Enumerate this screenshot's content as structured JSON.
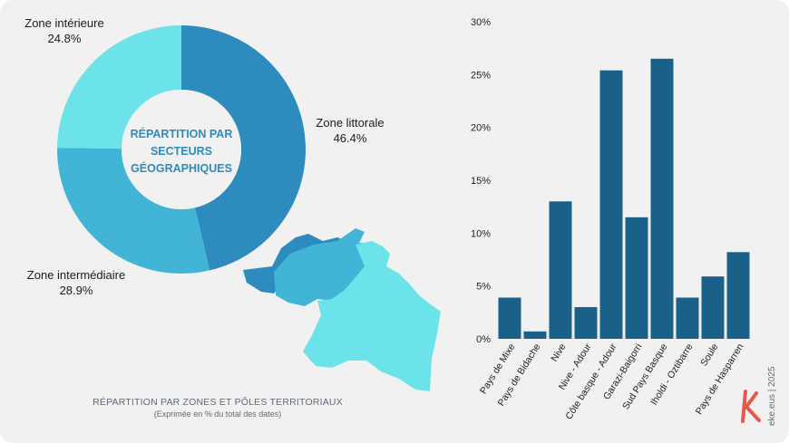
{
  "chart_data": [
    {
      "type": "pie",
      "center_label": [
        "RÉPARTITION PAR",
        "SECTEURS",
        "GÉOGRAPHIQUES"
      ],
      "slices": [
        {
          "label": "Zone littorale",
          "value": 46.4,
          "display": "46.4%",
          "color": "#2e8bbd"
        },
        {
          "label": "Zone intermédiaire",
          "value": 28.9,
          "display": "28.9%",
          "color": "#42b5d6"
        },
        {
          "label": "Zone intérieure",
          "value": 24.8,
          "display": "24.8%",
          "color": "#6ce3e8"
        }
      ]
    },
    {
      "type": "bar",
      "categories": [
        "Pays de Mixe",
        "Pays de Bidache",
        "Nive",
        "Nive - Adour",
        "Côte basque - Adour",
        "Garazi-Baigorri",
        "Sud Pays Basque",
        "Iholdi - Oztibarre",
        "Soule",
        "Pays de Hasparren"
      ],
      "values": [
        3.9,
        0.7,
        13.0,
        3.0,
        25.4,
        11.5,
        26.5,
        3.9,
        5.9,
        8.2
      ],
      "ylim": [
        0,
        30
      ],
      "yticks": [
        "0%",
        "5%",
        "10%",
        "15%",
        "20%",
        "25%",
        "30%"
      ],
      "bar_color": "#1a6189",
      "grid": false
    }
  ],
  "footer": {
    "title": "RÉPARTITION PAR ZONES ET PÔLES TERRITORIAUX",
    "subtitle": "(Exprimée en % du total des dates)"
  },
  "brand": {
    "text": "eke.eus | 2025",
    "color": "#e8584a"
  },
  "map_colors": {
    "littoral": "#2e8bbd",
    "intermediaire": "#42b5d6",
    "interieur": "#6ce3e8"
  }
}
